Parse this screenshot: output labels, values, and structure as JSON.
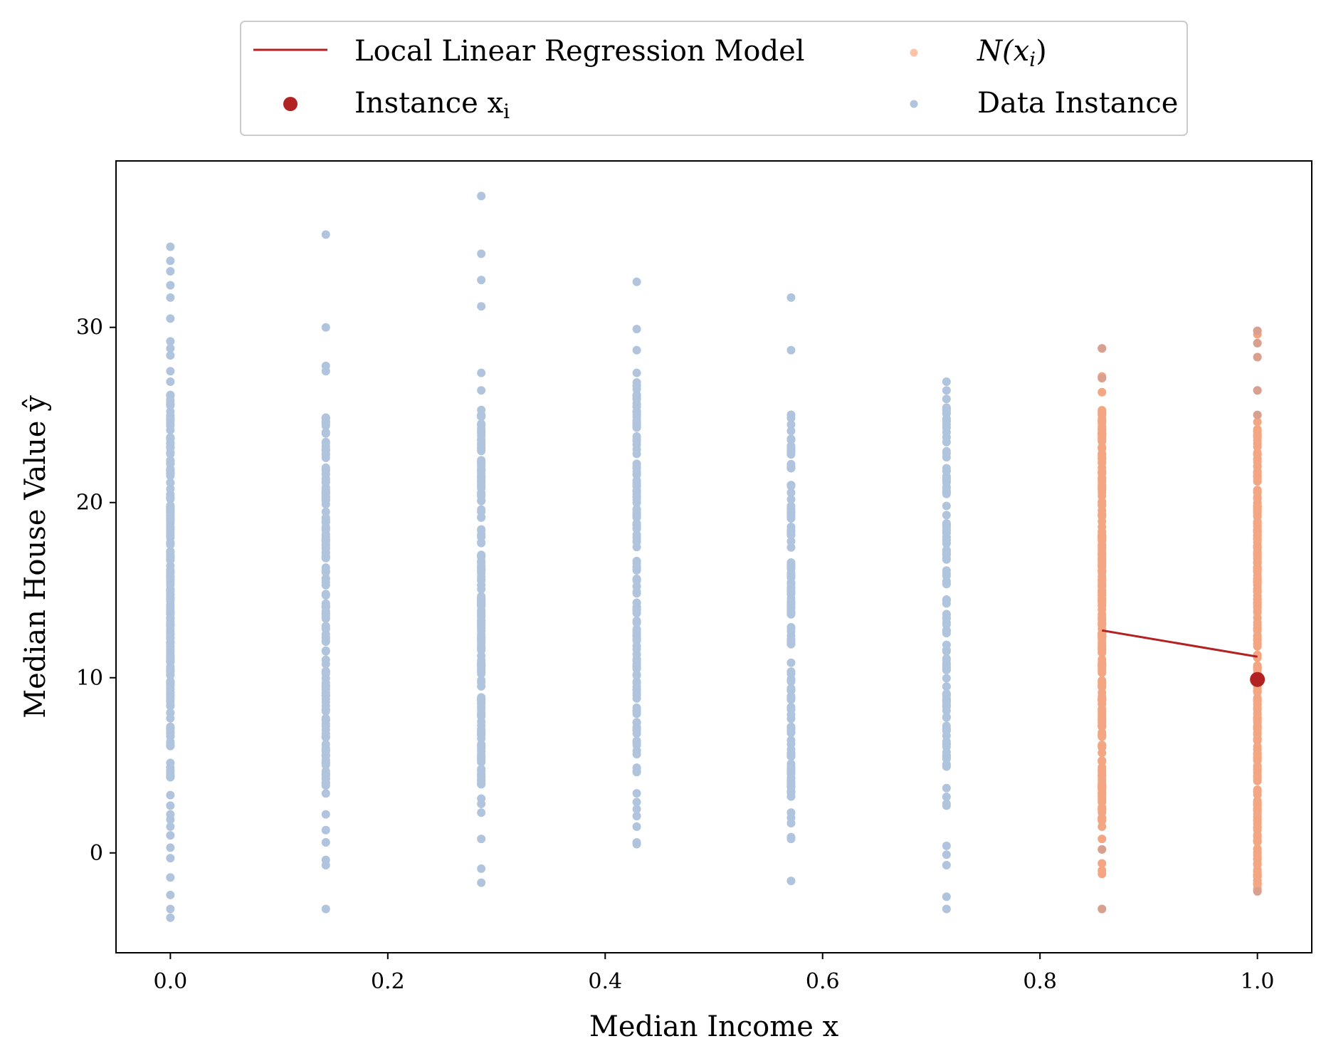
{
  "chart_data": {
    "type": "scatter",
    "title": "",
    "xlabel": "Median Income x",
    "ylabel": "Median House Value ŷ",
    "xlim": [
      -0.05,
      1.05
    ],
    "ylim": [
      -5.7,
      39.5
    ],
    "xticks": [
      "0.0",
      "0.2",
      "0.4",
      "0.6",
      "0.8",
      "1.0"
    ],
    "yticks": [
      "0",
      "10",
      "20",
      "30"
    ],
    "grid": false,
    "legend_position": "above plot, centered",
    "colors": {
      "model": "#b22222",
      "instance": "#b22222",
      "neighborhood": "#f4a582",
      "neighborhood_legend": "#fdc4a8",
      "data": "#b0c4de"
    },
    "legend": [
      {
        "label": "Local Linear Regression Model",
        "kind": "line"
      },
      {
        "label": "Instance x",
        "subscript": "i",
        "kind": "marker-large"
      },
      {
        "label": "N(x",
        "subscript": "i",
        "suffix": ")",
        "kind": "marker-small"
      },
      {
        "label": "Data Instance",
        "kind": "marker-small"
      }
    ],
    "series": [
      {
        "name": "Data Instance",
        "columns": [
          {
            "x": 0.0,
            "y_min": -3.7,
            "y_max": 34.6,
            "n": 240,
            "outliers": [
              34.6,
              33.8,
              33.2,
              32.4,
              31.7,
              30.5,
              29.2,
              28.8,
              28.4,
              27.5,
              26.9,
              3.3,
              2.7,
              2.2,
              1.9,
              1.5,
              1.0,
              0.3,
              -0.3,
              -1.4,
              -2.4,
              -3.2,
              -3.7
            ],
            "dense": [
              4.2,
              26.2
            ]
          },
          {
            "x": 0.143,
            "y_min": -3.2,
            "y_max": 35.3,
            "n": 170,
            "outliers": [
              35.3,
              30.0,
              27.8,
              27.5,
              2.2,
              1.3,
              0.6,
              -0.4,
              -0.7,
              -3.2
            ],
            "dense": [
              3.3,
              25.0
            ]
          },
          {
            "x": 0.286,
            "y_min": -1.7,
            "y_max": 37.5,
            "n": 180,
            "outliers": [
              37.5,
              34.2,
              32.7,
              31.2,
              27.4,
              26.4,
              3.1,
              2.8,
              2.3,
              0.8,
              -0.9,
              -1.7
            ],
            "dense": [
              3.8,
              25.8
            ]
          },
          {
            "x": 0.429,
            "y_min": 0.5,
            "y_max": 32.6,
            "n": 150,
            "outliers": [
              32.6,
              29.9,
              28.7,
              27.4,
              3.4,
              2.9,
              2.5,
              2.1,
              1.5,
              0.6,
              0.5
            ],
            "dense": [
              4.4,
              26.9
            ]
          },
          {
            "x": 0.571,
            "y_min": -1.6,
            "y_max": 31.7,
            "n": 150,
            "outliers": [
              31.7,
              28.7,
              2.3,
              2.0,
              1.7,
              0.9,
              0.8,
              -1.6
            ],
            "dense": [
              3.2,
              25.5
            ]
          },
          {
            "x": 0.714,
            "y_min": -3.2,
            "y_max": 26.9,
            "n": 140,
            "outliers": [
              26.9,
              26.4,
              3.7,
              3.2,
              2.8,
              2.7,
              0.4,
              -0.1,
              -0.7,
              -2.5,
              -3.2
            ],
            "dense": [
              4.6,
              26.0
            ]
          }
        ]
      },
      {
        "name": "N(xᵢ)",
        "columns": [
          {
            "x": 0.857,
            "y_min": -3.2,
            "y_max": 28.8,
            "n": 260,
            "outliers": [
              28.8,
              27.2,
              27.1,
              26.3,
              1.5,
              0.8,
              0.2,
              -0.6,
              -1.0,
              -1.2,
              -3.2
            ],
            "dense": [
              1.8,
              26.0
            ]
          },
          {
            "x": 1.0,
            "y_min": -2.2,
            "y_max": 29.8,
            "n": 300,
            "outliers": [
              29.8,
              29.6,
              29.1,
              28.3,
              26.4,
              25.0,
              24.6
            ],
            "dense": [
              -2.2,
              24.2
            ]
          }
        ]
      },
      {
        "name": "Local Linear Regression Model",
        "x": [
          0.857,
          1.0
        ],
        "y": [
          12.7,
          11.2
        ]
      },
      {
        "name": "Instance xᵢ",
        "x": [
          1.0
        ],
        "y": [
          9.9
        ]
      }
    ]
  }
}
